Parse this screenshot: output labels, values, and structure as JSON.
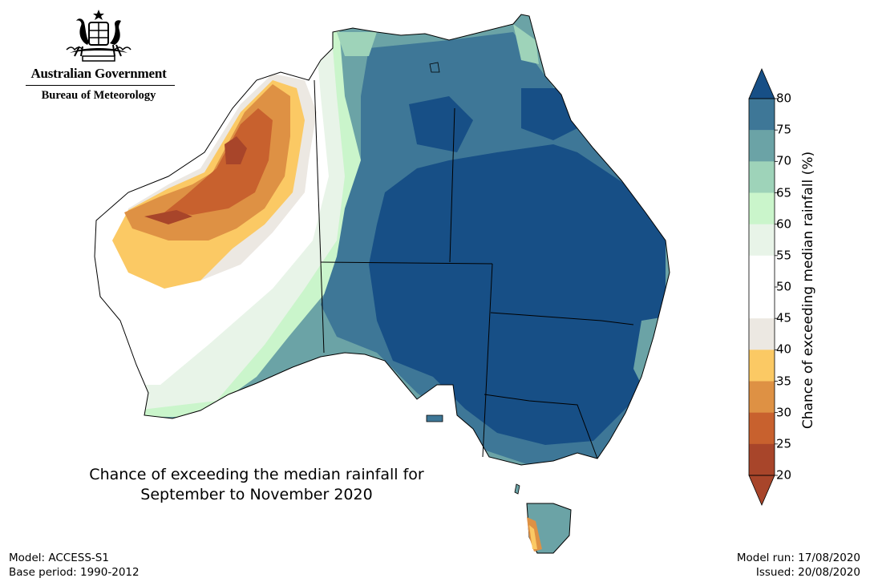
{
  "header": {
    "government": "Australian Government",
    "agency": "Bureau of Meteorology"
  },
  "map": {
    "title_line1": "Chance of exceeding the median rainfall for",
    "title_line2": "September to November 2020",
    "colors": {
      "20-25": "#a8452a",
      "25-30": "#c8612e",
      "30-35": "#de9144",
      "35-40": "#fbc964",
      "40-45": "#ece8e2",
      "45-50": "#ffffff",
      "50-55": "#ffffff",
      "55-60": "#e8f4e8",
      "60-65": "#caf5cb",
      "65-70": "#9ed3b9",
      "70-75": "#6ba3a6",
      "75-80": "#3e7797",
      "80+": "#174f86"
    }
  },
  "legend": {
    "title": "Chance of exceeding median rainfall (%)",
    "ticks": [
      "80",
      "75",
      "70",
      "65",
      "60",
      "55",
      "50",
      "45",
      "40",
      "35",
      "30",
      "25",
      "20"
    ],
    "bands": [
      {
        "range": "75-80",
        "color": "#3e7797"
      },
      {
        "range": "70-75",
        "color": "#6ba3a6"
      },
      {
        "range": "65-70",
        "color": "#9ed3b9"
      },
      {
        "range": "60-65",
        "color": "#caf5cb"
      },
      {
        "range": "55-60",
        "color": "#e8f4e8"
      },
      {
        "range": "50-55",
        "color": "#ffffff"
      },
      {
        "range": "45-50",
        "color": "#ffffff"
      },
      {
        "range": "40-45",
        "color": "#ece8e2"
      },
      {
        "range": "35-40",
        "color": "#fbc964"
      },
      {
        "range": "30-35",
        "color": "#de9144"
      },
      {
        "range": "25-30",
        "color": "#c8612e"
      },
      {
        "range": "20-25",
        "color": "#a8452a"
      }
    ],
    "over_color": "#174f86",
    "under_color": "#a8452a"
  },
  "footer": {
    "model": "Model: ACCESS-S1",
    "base_period": "Base period: 1990-2012",
    "model_run": "Model run: 17/08/2020",
    "issued": "Issued: 20/08/2020"
  }
}
